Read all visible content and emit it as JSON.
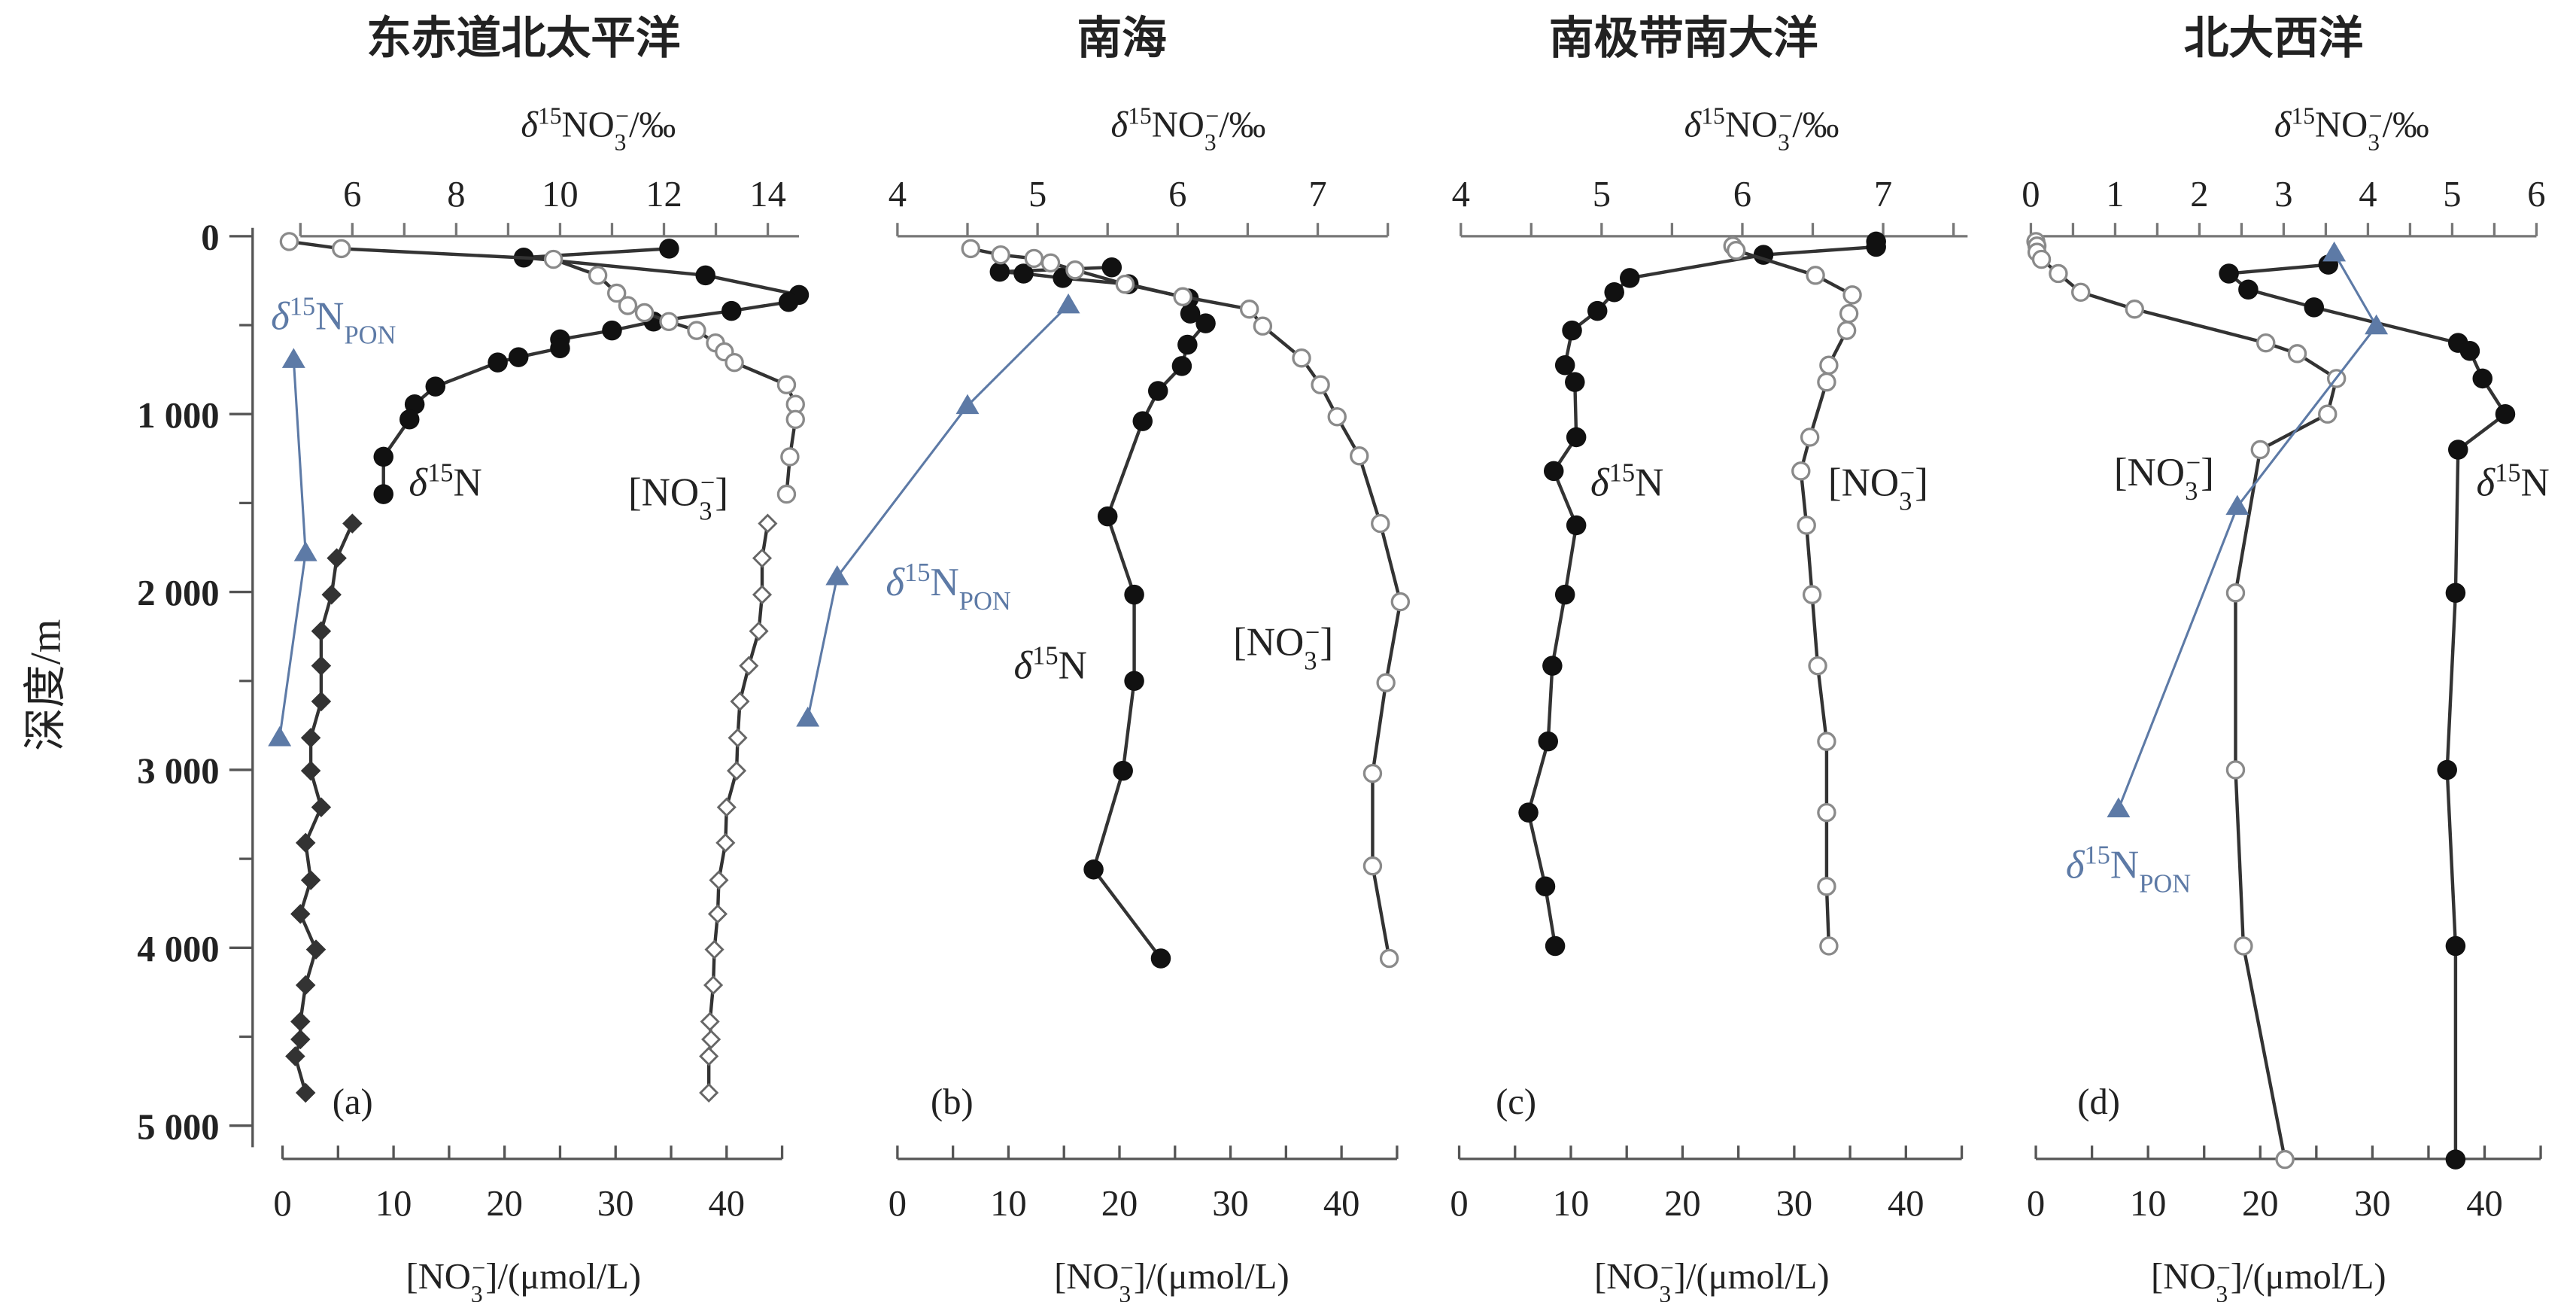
{
  "chart_data": {
    "type": "scatter",
    "y_axis": {
      "label": "深度/m",
      "ticks": [
        "0",
        "1 000",
        "2 000",
        "3 000",
        "4 000",
        "5 000"
      ],
      "tick_values": [
        0,
        1000,
        2000,
        3000,
        4000,
        5000
      ],
      "minor_step": 500,
      "range": [
        0,
        5000
      ],
      "inverted": true
    },
    "top_axis_title": [
      {
        "t": "δ",
        "s": "i"
      },
      {
        "t": "15",
        "s": "sup"
      },
      {
        "t": "NO"
      },
      {
        "t": "3",
        "s": "sub"
      },
      {
        "t": "−",
        "s": "supback"
      },
      {
        "t": "/‰"
      }
    ],
    "bottom_axis_title": [
      {
        "t": "[NO"
      },
      {
        "t": "3",
        "s": "sub"
      },
      {
        "t": "−",
        "s": "supback"
      },
      {
        "t": "]/(μmol/L)"
      }
    ],
    "label_texts": {
      "d15N": [
        {
          "t": "δ",
          "s": "i"
        },
        {
          "t": "15",
          "s": "sup"
        },
        {
          "t": "N"
        }
      ],
      "no3": [
        {
          "t": "[NO"
        },
        {
          "t": "3",
          "s": "sub"
        },
        {
          "t": "−",
          "s": "supback"
        },
        {
          "t": "]"
        }
      ],
      "pon": [
        {
          "t": "δ",
          "s": "i"
        },
        {
          "t": "15",
          "s": "sup"
        },
        {
          "t": "N"
        },
        {
          "t": "PON",
          "s": "sub"
        }
      ]
    },
    "colors": {
      "line": "#333333",
      "open_marker": "#8a8a8a",
      "pon": "#5d7aa6"
    },
    "panels": [
      {
        "id": "a",
        "title": "东赤道北太平洋",
        "letter": "(a)",
        "top_axis": {
          "ticks": [
            6,
            8,
            10,
            12,
            14
          ],
          "minor_step": 1,
          "range": [
            5,
            14.6
          ]
        },
        "bottom_axis": {
          "ticks": [
            0,
            10,
            20,
            30,
            40
          ],
          "minor_step": 5,
          "range": [
            0,
            45
          ]
        },
        "series": [
          {
            "name": "δ15N",
            "axis": "top",
            "marker": "filled-circle",
            "points": [
              [
                12.1,
                70
              ],
              [
                9.3,
                120
              ],
              [
                12.8,
                220
              ],
              [
                14.6,
                330
              ],
              [
                14.4,
                370
              ],
              [
                13.3,
                420
              ],
              [
                11.8,
                480
              ],
              [
                11.0,
                530
              ],
              [
                10.0,
                580
              ],
              [
                10.0,
                630
              ],
              [
                9.2,
                680
              ],
              [
                8.8,
                710
              ],
              [
                7.6,
                845
              ],
              [
                7.2,
                945
              ],
              [
                7.1,
                1030
              ],
              [
                6.6,
                1240
              ],
              [
                6.6,
                1450
              ]
            ]
          },
          {
            "name": "δ15N deep",
            "axis": "top",
            "marker": "filled-diamond",
            "points": [
              [
                6.0,
                1615
              ],
              [
                5.7,
                1810
              ],
              [
                5.6,
                2015
              ],
              [
                5.4,
                2220
              ],
              [
                5.4,
                2415
              ],
              [
                5.4,
                2615
              ],
              [
                5.2,
                2820
              ],
              [
                5.2,
                3005
              ],
              [
                5.4,
                3210
              ],
              [
                5.1,
                3410
              ],
              [
                5.2,
                3620
              ],
              [
                5.0,
                3810
              ],
              [
                5.3,
                4010
              ],
              [
                5.1,
                4210
              ],
              [
                5.0,
                4415
              ],
              [
                5.0,
                4515
              ],
              [
                4.9,
                4610
              ],
              [
                5.1,
                4815
              ]
            ]
          },
          {
            "name": "[NO3-]",
            "axis": "bottom",
            "marker": "open-circle",
            "points": [
              [
                0.6,
                30
              ],
              [
                5.3,
                70
              ],
              [
                24.4,
                130
              ],
              [
                28.4,
                220
              ],
              [
                30.1,
                320
              ],
              [
                31.1,
                390
              ],
              [
                32.6,
                430
              ],
              [
                34.8,
                480
              ],
              [
                37.3,
                530
              ],
              [
                39.0,
                600
              ],
              [
                39.8,
                650
              ],
              [
                40.7,
                710
              ],
              [
                45.4,
                835
              ],
              [
                46.2,
                945
              ],
              [
                46.2,
                1030
              ],
              [
                45.7,
                1240
              ],
              [
                45.4,
                1450
              ]
            ]
          },
          {
            "name": "[NO3-] deep",
            "axis": "bottom",
            "marker": "open-diamond",
            "points": [
              [
                43.7,
                1615
              ],
              [
                43.2,
                1810
              ],
              [
                43.2,
                2015
              ],
              [
                42.9,
                2220
              ],
              [
                42.0,
                2415
              ],
              [
                41.2,
                2615
              ],
              [
                41.0,
                2820
              ],
              [
                40.9,
                3005
              ],
              [
                40.0,
                3210
              ],
              [
                39.9,
                3410
              ],
              [
                39.3,
                3620
              ],
              [
                39.2,
                3810
              ],
              [
                38.9,
                4010
              ],
              [
                38.8,
                4210
              ],
              [
                38.5,
                4415
              ],
              [
                38.6,
                4515
              ],
              [
                38.4,
                4610
              ],
              [
                38.4,
                4815
              ]
            ]
          },
          {
            "name": "δ15N PON",
            "axis": "top",
            "marker": "triangle",
            "points": [
              [
                4.87,
                694
              ],
              [
                5.1,
                1780
              ],
              [
                4.6,
                2820
              ]
            ]
          }
        ]
      },
      {
        "id": "b",
        "title": "南海",
        "letter": "(b)",
        "top_axis": {
          "ticks": [
            4,
            5,
            6,
            7
          ],
          "minor_step": 0.5,
          "range": [
            4,
            7.5
          ]
        },
        "bottom_axis": {
          "ticks": [
            0,
            10,
            20,
            30,
            40
          ],
          "minor_step": 5,
          "range": [
            0,
            45
          ]
        },
        "series": [
          {
            "name": "δ15N",
            "axis": "top",
            "marker": "filled-circle",
            "points": [
              [
                5.53,
                175
              ],
              [
                4.73,
                200
              ],
              [
                4.9,
                210
              ],
              [
                5.18,
                235
              ],
              [
                5.65,
                270
              ],
              [
                6.08,
                350
              ],
              [
                6.09,
                435
              ],
              [
                6.2,
                490
              ],
              [
                6.07,
                610
              ],
              [
                6.03,
                730
              ],
              [
                5.86,
                870
              ],
              [
                5.75,
                1040
              ],
              [
                5.5,
                1575
              ],
              [
                5.69,
                2015
              ],
              [
                5.69,
                2500
              ],
              [
                5.61,
                3005
              ],
              [
                5.4,
                3560
              ],
              [
                5.88,
                4060
              ]
            ]
          },
          {
            "name": "[NO3-]",
            "axis": "bottom",
            "marker": "open-circle",
            "points": [
              [
                6.6,
                70
              ],
              [
                9.3,
                105
              ],
              [
                12.3,
                125
              ],
              [
                13.8,
                150
              ],
              [
                16.0,
                190
              ],
              [
                20.5,
                270
              ],
              [
                25.7,
                340
              ],
              [
                31.7,
                410
              ],
              [
                32.9,
                505
              ],
              [
                36.4,
                685
              ],
              [
                38.1,
                835
              ],
              [
                39.6,
                1015
              ],
              [
                41.6,
                1235
              ],
              [
                43.5,
                1615
              ],
              [
                45.3,
                2055
              ],
              [
                44.0,
                2510
              ],
              [
                42.8,
                3020
              ],
              [
                42.8,
                3540
              ],
              [
                44.3,
                4060
              ]
            ]
          },
          {
            "name": "δ15N PON",
            "axis": "top",
            "marker": "triangle",
            "points": [
              [
                5.22,
                387
              ],
              [
                4.5,
                953
              ],
              [
                3.57,
                1915
              ],
              [
                3.36,
                2710
              ]
            ]
          }
        ]
      },
      {
        "id": "c",
        "title": "南极带南大洋",
        "letter": "(c)",
        "top_axis": {
          "ticks": [
            4,
            5,
            6,
            7
          ],
          "minor_step": 0.5,
          "range": [
            4,
            7.6
          ]
        },
        "bottom_axis": {
          "ticks": [
            0,
            10,
            20,
            30,
            40
          ],
          "minor_step": 5,
          "range": [
            0,
            45
          ]
        },
        "series": [
          {
            "name": "δ15N",
            "axis": "top",
            "marker": "filled-circle",
            "points": [
              [
                6.95,
                30
              ],
              [
                6.95,
                60
              ],
              [
                6.15,
                105
              ],
              [
                5.2,
                235
              ],
              [
                5.09,
                315
              ],
              [
                4.97,
                420
              ],
              [
                4.79,
                530
              ],
              [
                4.74,
                725
              ],
              [
                4.81,
                820
              ],
              [
                4.82,
                1130
              ],
              [
                4.66,
                1320
              ],
              [
                4.82,
                1625
              ],
              [
                4.74,
                2015
              ],
              [
                4.65,
                2415
              ],
              [
                4.62,
                2840
              ],
              [
                4.48,
                3240
              ],
              [
                4.6,
                3655
              ],
              [
                4.67,
                3990
              ]
            ]
          },
          {
            "name": "[NO3-]",
            "axis": "bottom",
            "marker": "open-circle",
            "points": [
              [
                24.5,
                55
              ],
              [
                24.8,
                80
              ],
              [
                31.9,
                220
              ],
              [
                35.2,
                330
              ],
              [
                34.9,
                435
              ],
              [
                34.7,
                530
              ],
              [
                33.1,
                725
              ],
              [
                32.9,
                820
              ],
              [
                31.4,
                1130
              ],
              [
                30.6,
                1320
              ],
              [
                31.1,
                1625
              ],
              [
                31.6,
                2015
              ],
              [
                32.1,
                2415
              ],
              [
                32.9,
                2840
              ],
              [
                32.9,
                3240
              ],
              [
                32.9,
                3655
              ],
              [
                33.1,
                3990
              ]
            ]
          }
        ]
      },
      {
        "id": "d",
        "title": "北大西洋",
        "letter": "(d)",
        "top_axis": {
          "ticks": [
            0,
            1,
            2,
            3,
            4,
            5,
            6
          ],
          "minor_step": 0.5,
          "range": [
            0,
            6
          ]
        },
        "bottom_axis": {
          "ticks": [
            0,
            10,
            20,
            30,
            40
          ],
          "minor_step": 5,
          "range": [
            0,
            45
          ]
        },
        "series": [
          {
            "name": "δ15N",
            "axis": "top",
            "marker": "filled-circle",
            "points": [
              [
                3.53,
                160
              ],
              [
                2.35,
                210
              ],
              [
                2.58,
                300
              ],
              [
                3.36,
                400
              ],
              [
                5.07,
                600
              ],
              [
                5.21,
                645
              ],
              [
                5.36,
                800
              ],
              [
                5.63,
                1000
              ],
              [
                5.07,
                1200
              ],
              [
                5.04,
                2005
              ],
              [
                4.94,
                3000
              ],
              [
                5.04,
                3990
              ],
              [
                5.04,
                5190
              ]
            ]
          },
          {
            "name": "[NO3-]",
            "axis": "bottom",
            "marker": "open-circle",
            "points": [
              [
                0,
                30
              ],
              [
                0.1,
                55
              ],
              [
                0.1,
                90
              ],
              [
                0.5,
                130
              ],
              [
                2.0,
                210
              ],
              [
                4.0,
                315
              ],
              [
                8.8,
                410
              ],
              [
                20.5,
                600
              ],
              [
                23.3,
                660
              ],
              [
                26.8,
                800
              ],
              [
                26.0,
                1000
              ],
              [
                20.0,
                1200
              ],
              [
                17.8,
                2005
              ],
              [
                17.8,
                3000
              ],
              [
                18.5,
                3990
              ],
              [
                22.2,
                5190
              ]
            ]
          },
          {
            "name": "δ15N PON",
            "axis": "top",
            "marker": "triangle",
            "points": [
              [
                3.6,
                95
              ],
              [
                4.1,
                505
              ],
              [
                2.45,
                1520
              ],
              [
                1.04,
                3220
              ]
            ]
          }
        ]
      }
    ]
  }
}
